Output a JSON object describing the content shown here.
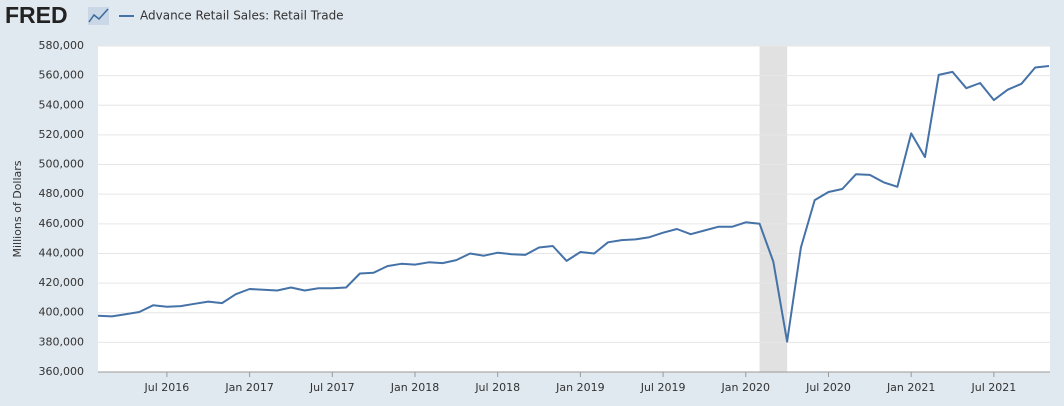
{
  "chart_data": {
    "type": "line",
    "logo": "FRED",
    "y_label": "Millions of Dollars",
    "x": [
      "2016-02",
      "2016-03",
      "2016-04",
      "2016-05",
      "2016-06",
      "2016-07",
      "2016-08",
      "2016-09",
      "2016-10",
      "2016-11",
      "2016-12",
      "2017-01",
      "2017-02",
      "2017-03",
      "2017-04",
      "2017-05",
      "2017-06",
      "2017-07",
      "2017-08",
      "2017-09",
      "2017-10",
      "2017-11",
      "2017-12",
      "2018-01",
      "2018-02",
      "2018-03",
      "2018-04",
      "2018-05",
      "2018-06",
      "2018-07",
      "2018-08",
      "2018-09",
      "2018-10",
      "2018-11",
      "2018-12",
      "2019-01",
      "2019-02",
      "2019-03",
      "2019-04",
      "2019-05",
      "2019-06",
      "2019-07",
      "2019-08",
      "2019-09",
      "2019-10",
      "2019-11",
      "2019-12",
      "2020-01",
      "2020-02",
      "2020-03",
      "2020-04",
      "2020-05",
      "2020-06",
      "2020-07",
      "2020-08",
      "2020-09",
      "2020-10",
      "2020-11",
      "2020-12",
      "2021-01",
      "2021-02",
      "2021-03",
      "2021-04",
      "2021-05",
      "2021-06",
      "2021-07",
      "2021-08",
      "2021-09",
      "2021-10",
      "2021-11"
    ],
    "series": [
      {
        "name": "Advance Retail Sales: Retail Trade",
        "color": "#4572a7",
        "values": [
          398000,
          397500,
          399000,
          400500,
          405000,
          404000,
          404500,
          406000,
          407500,
          406500,
          412500,
          416000,
          415500,
          415000,
          417000,
          415000,
          416500,
          416500,
          417000,
          426500,
          427000,
          431500,
          433000,
          432500,
          434000,
          433500,
          435500,
          440000,
          438500,
          440500,
          439500,
          439000,
          444000,
          445000,
          435000,
          441000,
          440000,
          447500,
          449000,
          449500,
          451000,
          454000,
          456500,
          453000,
          455500,
          458000,
          458000,
          461000,
          460000,
          434500,
          380500,
          444000,
          476000,
          481500,
          483500,
          493500,
          493000,
          488000,
          485000,
          521000,
          505000,
          560500,
          562500,
          551500,
          555000,
          543500,
          550500,
          554500,
          565500,
          566500
        ]
      }
    ],
    "recessions": [
      {
        "start": "2020-02",
        "end": "2020-04"
      }
    ],
    "xlim": [
      "2016-02",
      "2021-11"
    ],
    "xticks": [
      {
        "value": "2016-07",
        "label": "Jul 2016"
      },
      {
        "value": "2017-01",
        "label": "Jan 2017"
      },
      {
        "value": "2017-07",
        "label": "Jul 2017"
      },
      {
        "value": "2018-01",
        "label": "Jan 2018"
      },
      {
        "value": "2018-07",
        "label": "Jul 2018"
      },
      {
        "value": "2019-01",
        "label": "Jan 2019"
      },
      {
        "value": "2019-07",
        "label": "Jul 2019"
      },
      {
        "value": "2020-01",
        "label": "Jan 2020"
      },
      {
        "value": "2020-07",
        "label": "Jul 2020"
      },
      {
        "value": "2021-01",
        "label": "Jan 2021"
      },
      {
        "value": "2021-07",
        "label": "Jul 2021"
      }
    ],
    "ylim": [
      360000,
      580000
    ],
    "yticks": [
      {
        "value": 360000,
        "label": "360,000"
      },
      {
        "value": 380000,
        "label": "380,000"
      },
      {
        "value": 400000,
        "label": "400,000"
      },
      {
        "value": 420000,
        "label": "420,000"
      },
      {
        "value": 440000,
        "label": "440,000"
      },
      {
        "value": 460000,
        "label": "460,000"
      },
      {
        "value": 480000,
        "label": "480,000"
      },
      {
        "value": 500000,
        "label": "500,000"
      },
      {
        "value": 520000,
        "label": "520,000"
      },
      {
        "value": 540000,
        "label": "540,000"
      },
      {
        "value": 560000,
        "label": "560,000"
      },
      {
        "value": 580000,
        "label": "580,000"
      }
    ],
    "grid": true
  }
}
